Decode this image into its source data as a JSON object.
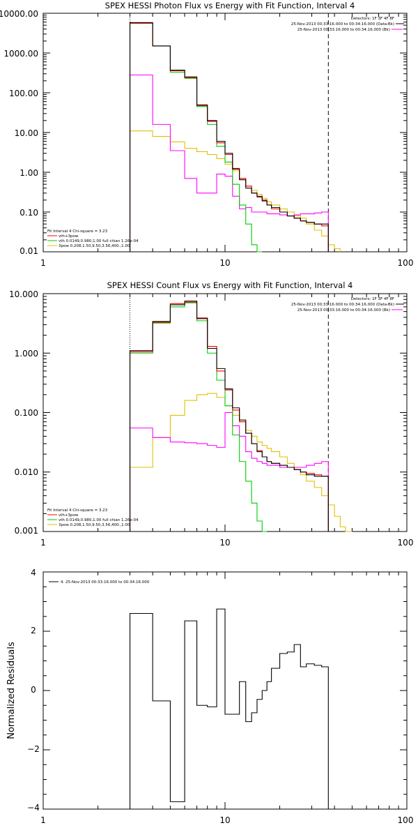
{
  "colors": {
    "data": "#000000",
    "model": "#ff0000",
    "vth": "#00cc00",
    "bk": "#ff00ff",
    "spow": "#e0c000",
    "axis": "#000000"
  },
  "chart_data": [
    {
      "type": "line",
      "title": "SPEX HESSI Photon Flux vs Energy with Fit Function, Interval 4",
      "xscale": "log",
      "yscale": "log",
      "xlim": [
        1,
        100
      ],
      "ylim": [
        0.01,
        10000
      ],
      "grid": false,
      "x_tick_labels": [
        "1",
        "10",
        "100"
      ],
      "y_tick_labels": [
        "0.01",
        "0.10",
        "1.00",
        "10.00",
        "100.00",
        "1000.00",
        "10000.00"
      ],
      "legend_top": [
        "Detectors: 1F 3F 4F 8F",
        "25-Nov-2013 00:33:16.000 to 00:34:16.000 (Data-Bk)",
        "25-Nov-2013 00:33:16.000 to 00:34:16.000 (Bk)"
      ],
      "legend_bottom": [
        "Fit Interval 4   Chi-square = 3.23",
        "vth+3pow",
        "vth 0.0149,0.980,1.00  full chian 1.26e-04",
        "3pow 0.208,1.50,9.50,3.56,400.,1.00"
      ],
      "vlines": {
        "dotted": 3,
        "dashed": 37
      },
      "bin_edges": [
        3,
        4,
        5,
        6,
        7,
        8,
        9,
        10,
        11,
        12,
        13,
        14,
        15,
        16,
        17,
        18,
        20,
        22,
        24,
        26,
        28,
        31,
        34,
        37,
        40,
        43,
        46,
        50
      ],
      "series": [
        {
          "key": "data",
          "values": [
            5800,
            1500,
            370,
            250,
            48,
            20,
            6,
            3,
            1.2,
            0.65,
            0.4,
            0.3,
            0.24,
            0.19,
            0.15,
            0.13,
            0.1,
            0.08,
            0.07,
            0.06,
            0.055,
            0.05,
            0.05,
            null,
            null,
            null,
            null
          ]
        },
        {
          "key": "model",
          "values": [
            5600,
            1500,
            360,
            240,
            50,
            19,
            5.5,
            2.8,
            1.25,
            0.7,
            0.45,
            0.3,
            0.25,
            0.2,
            0.15,
            0.12,
            0.1,
            0.08,
            0.07,
            0.06,
            0.055,
            0.05,
            0.045,
            null,
            null,
            null,
            null
          ]
        },
        {
          "key": "vth",
          "values": [
            5600,
            1500,
            330,
            230,
            45,
            16,
            4.5,
            1.8,
            0.5,
            0.15,
            0.05,
            0.015,
            0.01,
            null,
            null,
            null,
            null,
            null,
            null,
            null,
            null,
            null,
            null,
            null,
            null,
            null,
            null
          ]
        },
        {
          "key": "bk",
          "values": [
            280,
            16,
            3.5,
            0.7,
            0.3,
            0.3,
            0.9,
            0.8,
            0.25,
            0.12,
            0.13,
            0.1,
            0.1,
            0.1,
            0.09,
            0.09,
            0.085,
            0.08,
            0.085,
            0.09,
            0.09,
            0.095,
            0.1,
            null,
            null,
            null,
            null
          ]
        },
        {
          "key": "spow",
          "values": [
            11,
            8,
            5.8,
            4,
            3.3,
            2.8,
            2.2,
            1.6,
            1.1,
            0.7,
            0.45,
            0.35,
            0.28,
            0.22,
            0.18,
            0.15,
            0.12,
            0.1,
            0.08,
            0.07,
            0.05,
            0.035,
            0.025,
            0.015,
            0.012,
            null,
            null
          ]
        }
      ]
    },
    {
      "type": "line",
      "title": "SPEX HESSI Count Flux vs Energy with Fit Function, Interval 4",
      "xscale": "log",
      "yscale": "log",
      "xlim": [
        1,
        100
      ],
      "ylim": [
        0.001,
        10
      ],
      "grid": false,
      "x_tick_labels": [
        "1",
        "10",
        "100"
      ],
      "y_tick_labels": [
        "0.001",
        "0.010",
        "0.100",
        "1.000",
        "10.000"
      ],
      "legend_top": [
        "Detectors: 1F 3F 4F 8F",
        "25-Nov-2013 00:33:16.000 to 00:34:16.000 (Data-Bk)",
        "25-Nov-2013 00:33:16.000 to 00:34:16.000 (Bk)"
      ],
      "legend_bottom": [
        "Fit Interval 4   Chi-square = 3.23",
        "vth+3pow",
        "vth 0.0149,0.980,1.00  full chian 1.26e-04",
        "3pow 0.208,1.50,9.50,3.56,400.,1.00"
      ],
      "vlines": {
        "dotted": 3,
        "dashed": 37
      },
      "bin_edges": [
        3,
        4,
        5,
        6,
        7,
        8,
        9,
        10,
        11,
        12,
        13,
        14,
        15,
        16,
        17,
        18,
        20,
        22,
        24,
        26,
        28,
        31,
        34,
        37,
        40,
        43,
        46,
        50
      ],
      "series": [
        {
          "key": "data",
          "values": [
            1.1,
            3.4,
            6.5,
            7.5,
            3.8,
            1.2,
            0.55,
            0.25,
            0.12,
            0.075,
            0.045,
            0.03,
            0.022,
            0.018,
            0.015,
            0.014,
            0.013,
            0.012,
            0.011,
            0.01,
            0.009,
            0.0085,
            0.0085,
            null,
            null,
            null,
            null
          ]
        },
        {
          "key": "model",
          "values": [
            1.05,
            3.3,
            6.8,
            7.2,
            3.9,
            1.3,
            0.5,
            0.24,
            0.11,
            0.07,
            0.045,
            0.03,
            0.023,
            0.018,
            0.015,
            0.014,
            0.013,
            0.012,
            0.011,
            0.01,
            0.0095,
            0.009,
            0.0085,
            null,
            null,
            null,
            null
          ]
        },
        {
          "key": "vth",
          "values": [
            1.0,
            3.2,
            6.0,
            7.0,
            3.5,
            1.0,
            0.35,
            0.13,
            0.042,
            0.015,
            0.007,
            0.003,
            0.0015,
            0.001,
            null,
            null,
            null,
            null,
            null,
            null,
            null,
            null,
            null,
            null,
            null,
            null,
            null
          ]
        },
        {
          "key": "bk",
          "values": [
            0.055,
            0.038,
            0.032,
            0.031,
            0.03,
            0.028,
            0.026,
            0.1,
            0.06,
            0.04,
            0.022,
            0.017,
            0.015,
            0.014,
            0.013,
            0.013,
            0.012,
            0.012,
            0.012,
            0.012,
            0.013,
            0.014,
            0.015,
            null,
            null,
            null,
            null
          ]
        },
        {
          "key": "spow",
          "values": [
            0.012,
            0.038,
            0.09,
            0.16,
            0.2,
            0.21,
            0.18,
            0.13,
            0.09,
            0.07,
            0.05,
            0.04,
            0.032,
            0.028,
            0.025,
            0.022,
            0.018,
            0.014,
            0.011,
            0.009,
            0.007,
            0.0055,
            0.004,
            0.0028,
            0.0018,
            0.0012,
            0.001
          ]
        }
      ]
    },
    {
      "type": "line",
      "title": "",
      "xscale": "log",
      "yscale": "linear",
      "xlim": [
        1,
        100
      ],
      "ylim": [
        -4,
        4
      ],
      "grid": false,
      "ylabel": "Normalized Residuals",
      "x_tick_labels": [
        "1",
        "10",
        "100"
      ],
      "y_tick_labels": [
        "−4",
        "−2",
        "0",
        "2",
        "4"
      ],
      "legend": "4. 25-Nov-2013 00:33:16.000 to 00:34:16.000",
      "bin_edges": [
        3,
        4,
        5,
        6,
        7,
        8,
        9,
        10,
        11,
        12,
        13,
        14,
        15,
        16,
        17,
        18,
        20,
        22,
        24,
        26,
        28,
        31,
        34,
        37
      ],
      "series": [
        {
          "key": "data",
          "values": [
            2.6,
            -0.35,
            -3.75,
            2.35,
            -0.5,
            -0.55,
            2.75,
            -0.8,
            -0.8,
            0.3,
            -1.05,
            -0.75,
            -0.3,
            0.0,
            0.3,
            0.75,
            1.25,
            1.3,
            1.55,
            0.8,
            0.9,
            0.85,
            0.8
          ]
        }
      ]
    }
  ]
}
